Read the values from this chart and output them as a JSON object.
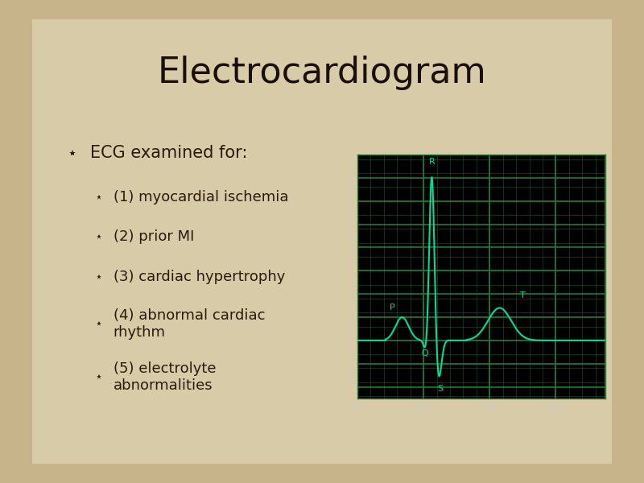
{
  "title": "Electrocardiogram",
  "title_fontsize": 32,
  "title_color": "#1a0f05",
  "title_font": "DejaVu Sans",
  "bg_color": "#c8b48a",
  "paper_color": "#d8cba8",
  "bullet_color": "#2b1a0a",
  "text_color": "#2b1a0a",
  "bullet1": "ECG examined for:",
  "bullet1_fontsize": 15,
  "bullet2_items": [
    "(1) myocardial ischemia",
    "(2) prior MI",
    "(3) cardiac hypertrophy",
    "(4) abnormal cardiac\nrhythm",
    "(5) electrolyte\nabnormalities"
  ],
  "bullet2_fontsize": 13,
  "ecg_bg": "#000000",
  "ecg_grid_minor_color": "#1a5a2a",
  "ecg_grid_major_color": "#2a7a3a",
  "ecg_line_color": "#00dd99",
  "ecg_label_color": "#00dd99",
  "ecg_axis_label_color": "#cccccc",
  "ecg_xticks": [
    0,
    0.2,
    0.4,
    0.6
  ],
  "ecg_xlim": [
    0,
    0.75
  ],
  "ecg_ylim": [
    -0.5,
    1.6
  ]
}
